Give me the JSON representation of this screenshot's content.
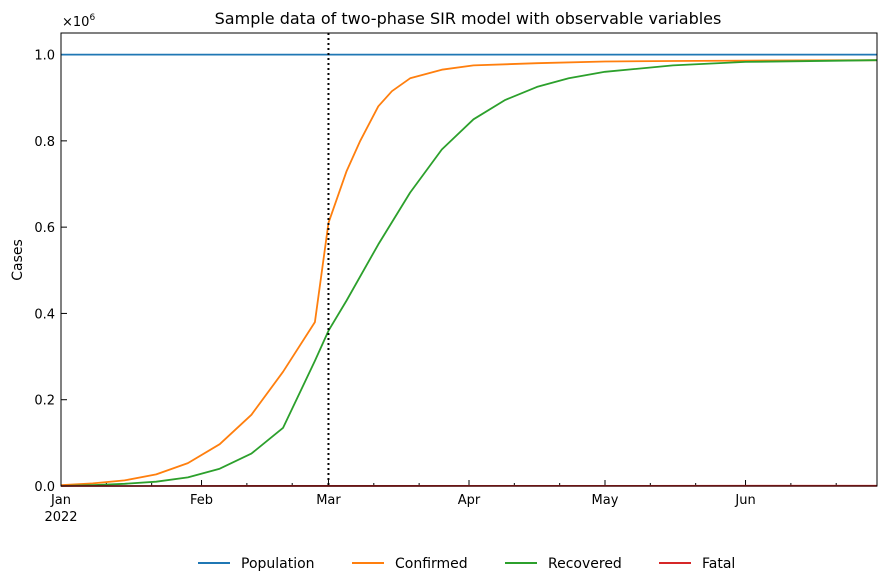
{
  "chart_data": {
    "type": "line",
    "title": "Sample data of two-phase SIR model with observable variables",
    "xlabel": "",
    "ylabel": "Cases",
    "y_multiplier_label": "×10",
    "y_multiplier_exponent": "6",
    "xlim": [
      "2022-01-01",
      "2022-06-30"
    ],
    "ylim": [
      0,
      1.05
    ],
    "y_ticks": [
      {
        "value": 0,
        "label": "0.0"
      },
      {
        "value": 0.2,
        "label": "0.2"
      },
      {
        "value": 0.4,
        "label": "0.4"
      },
      {
        "value": 0.6,
        "label": "0.6"
      },
      {
        "value": 0.8,
        "label": "0.8"
      },
      {
        "value": 1.0,
        "label": "1.0"
      }
    ],
    "x_ticks": [
      {
        "date": "2022-01-01",
        "label": "Jan",
        "sublabel": "2022"
      },
      {
        "date": "2022-02-01",
        "label": "Feb",
        "sublabel": ""
      },
      {
        "date": "2022-03-01",
        "label": "Mar",
        "sublabel": ""
      },
      {
        "date": "2022-04-01",
        "label": "Apr",
        "sublabel": ""
      },
      {
        "date": "2022-05-01",
        "label": "May",
        "sublabel": ""
      },
      {
        "date": "2022-06-01",
        "label": "Jun",
        "sublabel": ""
      }
    ],
    "grid": false,
    "legend_placement": "bottom-center",
    "vline": {
      "date": "2022-03-01",
      "style": "dotted",
      "color": "#000000"
    },
    "series": [
      {
        "name": "Population",
        "color": "#1f77b4",
        "points": [
          [
            "2022-01-01",
            1.0
          ],
          [
            "2022-06-30",
            1.0
          ]
        ]
      },
      {
        "name": "Confirmed",
        "color": "#ff7f0e",
        "points": [
          [
            "2022-01-01",
            0.002
          ],
          [
            "2022-01-08",
            0.006
          ],
          [
            "2022-01-15",
            0.013
          ],
          [
            "2022-01-22",
            0.027
          ],
          [
            "2022-01-29",
            0.053
          ],
          [
            "2022-02-05",
            0.097
          ],
          [
            "2022-02-12",
            0.165
          ],
          [
            "2022-02-19",
            0.265
          ],
          [
            "2022-02-26",
            0.38
          ],
          [
            "2022-03-01",
            0.61
          ],
          [
            "2022-03-05",
            0.73
          ],
          [
            "2022-03-08",
            0.8
          ],
          [
            "2022-03-12",
            0.88
          ],
          [
            "2022-03-15",
            0.915
          ],
          [
            "2022-03-19",
            0.945
          ],
          [
            "2022-03-26",
            0.965
          ],
          [
            "2022-04-02",
            0.975
          ],
          [
            "2022-04-16",
            0.98
          ],
          [
            "2022-05-01",
            0.984
          ],
          [
            "2022-05-16",
            0.985
          ],
          [
            "2022-06-01",
            0.986
          ],
          [
            "2022-06-30",
            0.987
          ]
        ]
      },
      {
        "name": "Recovered",
        "color": "#2ca02c",
        "points": [
          [
            "2022-01-01",
            0.0
          ],
          [
            "2022-01-08",
            0.002
          ],
          [
            "2022-01-15",
            0.005
          ],
          [
            "2022-01-22",
            0.01
          ],
          [
            "2022-01-29",
            0.02
          ],
          [
            "2022-02-05",
            0.04
          ],
          [
            "2022-02-12",
            0.075
          ],
          [
            "2022-02-19",
            0.135
          ],
          [
            "2022-02-26",
            0.29
          ],
          [
            "2022-03-01",
            0.36
          ],
          [
            "2022-03-05",
            0.43
          ],
          [
            "2022-03-12",
            0.56
          ],
          [
            "2022-03-19",
            0.68
          ],
          [
            "2022-03-26",
            0.78
          ],
          [
            "2022-04-02",
            0.85
          ],
          [
            "2022-04-09",
            0.895
          ],
          [
            "2022-04-16",
            0.925
          ],
          [
            "2022-04-23",
            0.945
          ],
          [
            "2022-05-01",
            0.96
          ],
          [
            "2022-05-16",
            0.975
          ],
          [
            "2022-06-01",
            0.983
          ],
          [
            "2022-06-30",
            0.987
          ]
        ]
      },
      {
        "name": "Fatal",
        "color": "#d62728",
        "points": [
          [
            "2022-01-01",
            0.0
          ],
          [
            "2022-06-30",
            0.0005
          ]
        ]
      }
    ]
  }
}
